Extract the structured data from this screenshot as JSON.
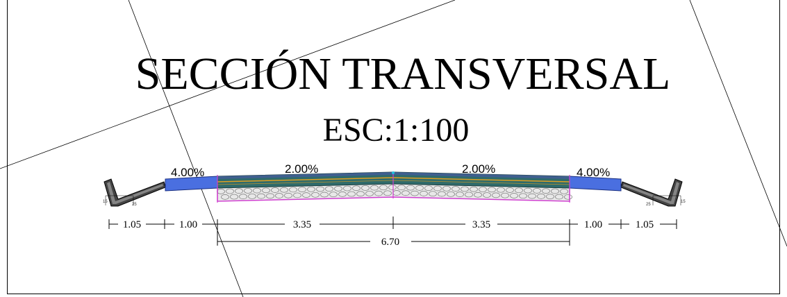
{
  "title": "SECCIÓN TRANSVERSAL",
  "scale": "ESC:1:100",
  "slopes": {
    "left_berm": "4.00%",
    "left_lane": "2.00%",
    "right_lane": "2.00%",
    "right_berm": "4.00%"
  },
  "dimensions": {
    "left_cuneta": "1.05",
    "left_berma": "1.00",
    "left_carril": "3.35",
    "right_carril": "3.35",
    "right_berma": "1.00",
    "right_cuneta": "1.05",
    "total": "6.70"
  },
  "ditch_labels": {
    "left_small": [
      "15",
      "25"
    ],
    "right_small": [
      "25",
      "15"
    ]
  },
  "colors": {
    "pavement": "#2f6b6b",
    "pavement_top": "#3f5f8f",
    "berm": "#4a6fe0",
    "base_line": "#e0a020",
    "subbase_outline": "#d040d0",
    "gravel": "#888888"
  }
}
